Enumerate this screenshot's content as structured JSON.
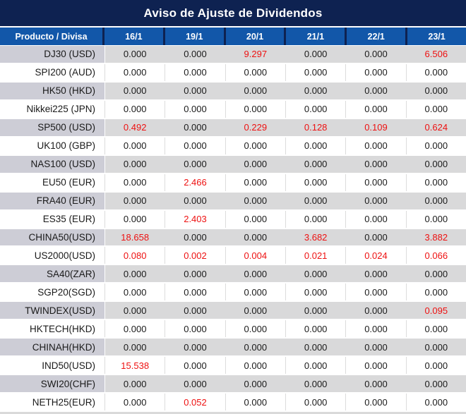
{
  "title": "Aviso de Ajuste de Dividendos",
  "table": {
    "product_header": "Producto / Divisa",
    "date_headers": [
      "16/1",
      "19/1",
      "20/1",
      "21/1",
      "22/1",
      "23/1"
    ],
    "zero_value": "0.000",
    "rows": [
      {
        "product": "DJ30 (USD)",
        "values": [
          "0.000",
          "0.000",
          "9.297",
          "0.000",
          "0.000",
          "6.506"
        ]
      },
      {
        "product": "SPI200 (AUD)",
        "values": [
          "0.000",
          "0.000",
          "0.000",
          "0.000",
          "0.000",
          "0.000"
        ]
      },
      {
        "product": "HK50 (HKD)",
        "values": [
          "0.000",
          "0.000",
          "0.000",
          "0.000",
          "0.000",
          "0.000"
        ]
      },
      {
        "product": "Nikkei225 (JPN)",
        "values": [
          "0.000",
          "0.000",
          "0.000",
          "0.000",
          "0.000",
          "0.000"
        ]
      },
      {
        "product": "SP500 (USD)",
        "values": [
          "0.492",
          "0.000",
          "0.229",
          "0.128",
          "0.109",
          "0.624"
        ]
      },
      {
        "product": "UK100 (GBP)",
        "values": [
          "0.000",
          "0.000",
          "0.000",
          "0.000",
          "0.000",
          "0.000"
        ]
      },
      {
        "product": "NAS100 (USD)",
        "values": [
          "0.000",
          "0.000",
          "0.000",
          "0.000",
          "0.000",
          "0.000"
        ]
      },
      {
        "product": "EU50 (EUR)",
        "values": [
          "0.000",
          "2.466",
          "0.000",
          "0.000",
          "0.000",
          "0.000"
        ]
      },
      {
        "product": "FRA40 (EUR)",
        "values": [
          "0.000",
          "0.000",
          "0.000",
          "0.000",
          "0.000",
          "0.000"
        ]
      },
      {
        "product": "ES35 (EUR)",
        "values": [
          "0.000",
          "2.403",
          "0.000",
          "0.000",
          "0.000",
          "0.000"
        ]
      },
      {
        "product": "CHINA50(USD)",
        "values": [
          "18.658",
          "0.000",
          "0.000",
          "3.682",
          "0.000",
          "3.882"
        ]
      },
      {
        "product": "US2000(USD)",
        "values": [
          "0.080",
          "0.002",
          "0.004",
          "0.021",
          "0.024",
          "0.066"
        ]
      },
      {
        "product": "SA40(ZAR)",
        "values": [
          "0.000",
          "0.000",
          "0.000",
          "0.000",
          "0.000",
          "0.000"
        ]
      },
      {
        "product": "SGP20(SGD)",
        "values": [
          "0.000",
          "0.000",
          "0.000",
          "0.000",
          "0.000",
          "0.000"
        ]
      },
      {
        "product": "TWINDEX(USD)",
        "values": [
          "0.000",
          "0.000",
          "0.000",
          "0.000",
          "0.000",
          "0.095"
        ]
      },
      {
        "product": "HKTECH(HKD)",
        "values": [
          "0.000",
          "0.000",
          "0.000",
          "0.000",
          "0.000",
          "0.000"
        ]
      },
      {
        "product": "CHINAH(HKD)",
        "values": [
          "0.000",
          "0.000",
          "0.000",
          "0.000",
          "0.000",
          "0.000"
        ]
      },
      {
        "product": "IND50(USD)",
        "values": [
          "15.538",
          "0.000",
          "0.000",
          "0.000",
          "0.000",
          "0.000"
        ]
      },
      {
        "product": "SWI20(CHF)",
        "values": [
          "0.000",
          "0.000",
          "0.000",
          "0.000",
          "0.000",
          "0.000"
        ]
      },
      {
        "product": "NETH25(EUR)",
        "values": [
          "0.000",
          "0.052",
          "0.000",
          "0.000",
          "0.000",
          "0.000"
        ]
      }
    ]
  },
  "colors": {
    "title_navy": "#0e2251",
    "header_blue": "#1257a9",
    "highlight_red": "#ee1111",
    "row_gray": "#d9d9da",
    "product_gray": "#cdcdd6",
    "text_black": "#1a1a1a"
  },
  "chart_data": {
    "type": "table",
    "title": "Aviso de Ajuste de Dividendos",
    "columns": [
      "Producto / Divisa",
      "16/1",
      "19/1",
      "20/1",
      "21/1",
      "22/1",
      "23/1"
    ],
    "rows": [
      [
        "DJ30 (USD)",
        0.0,
        0.0,
        9.297,
        0.0,
        0.0,
        6.506
      ],
      [
        "SPI200 (AUD)",
        0.0,
        0.0,
        0.0,
        0.0,
        0.0,
        0.0
      ],
      [
        "HK50 (HKD)",
        0.0,
        0.0,
        0.0,
        0.0,
        0.0,
        0.0
      ],
      [
        "Nikkei225 (JPN)",
        0.0,
        0.0,
        0.0,
        0.0,
        0.0,
        0.0
      ],
      [
        "SP500 (USD)",
        0.492,
        0.0,
        0.229,
        0.128,
        0.109,
        0.624
      ],
      [
        "UK100 (GBP)",
        0.0,
        0.0,
        0.0,
        0.0,
        0.0,
        0.0
      ],
      [
        "NAS100 (USD)",
        0.0,
        0.0,
        0.0,
        0.0,
        0.0,
        0.0
      ],
      [
        "EU50 (EUR)",
        0.0,
        2.466,
        0.0,
        0.0,
        0.0,
        0.0
      ],
      [
        "FRA40 (EUR)",
        0.0,
        0.0,
        0.0,
        0.0,
        0.0,
        0.0
      ],
      [
        "ES35 (EUR)",
        0.0,
        2.403,
        0.0,
        0.0,
        0.0,
        0.0
      ],
      [
        "CHINA50(USD)",
        18.658,
        0.0,
        0.0,
        3.682,
        0.0,
        3.882
      ],
      [
        "US2000(USD)",
        0.08,
        0.002,
        0.004,
        0.021,
        0.024,
        0.066
      ],
      [
        "SA40(ZAR)",
        0.0,
        0.0,
        0.0,
        0.0,
        0.0,
        0.0
      ],
      [
        "SGP20(SGD)",
        0.0,
        0.0,
        0.0,
        0.0,
        0.0,
        0.0
      ],
      [
        "TWINDEX(USD)",
        0.0,
        0.0,
        0.0,
        0.0,
        0.0,
        0.095
      ],
      [
        "HKTECH(HKD)",
        0.0,
        0.0,
        0.0,
        0.0,
        0.0,
        0.0
      ],
      [
        "CHINAH(HKD)",
        0.0,
        0.0,
        0.0,
        0.0,
        0.0,
        0.0
      ],
      [
        "IND50(USD)",
        15.538,
        0.0,
        0.0,
        0.0,
        0.0,
        0.0
      ],
      [
        "SWI20(CHF)",
        0.0,
        0.0,
        0.0,
        0.0,
        0.0,
        0.0
      ],
      [
        "NETH25(EUR)",
        0.0,
        0.052,
        0.0,
        0.0,
        0.0,
        0.0
      ]
    ],
    "notes": "Non-zero values rendered in red; zero values in black. Rows alternate gray/white starting gray."
  }
}
